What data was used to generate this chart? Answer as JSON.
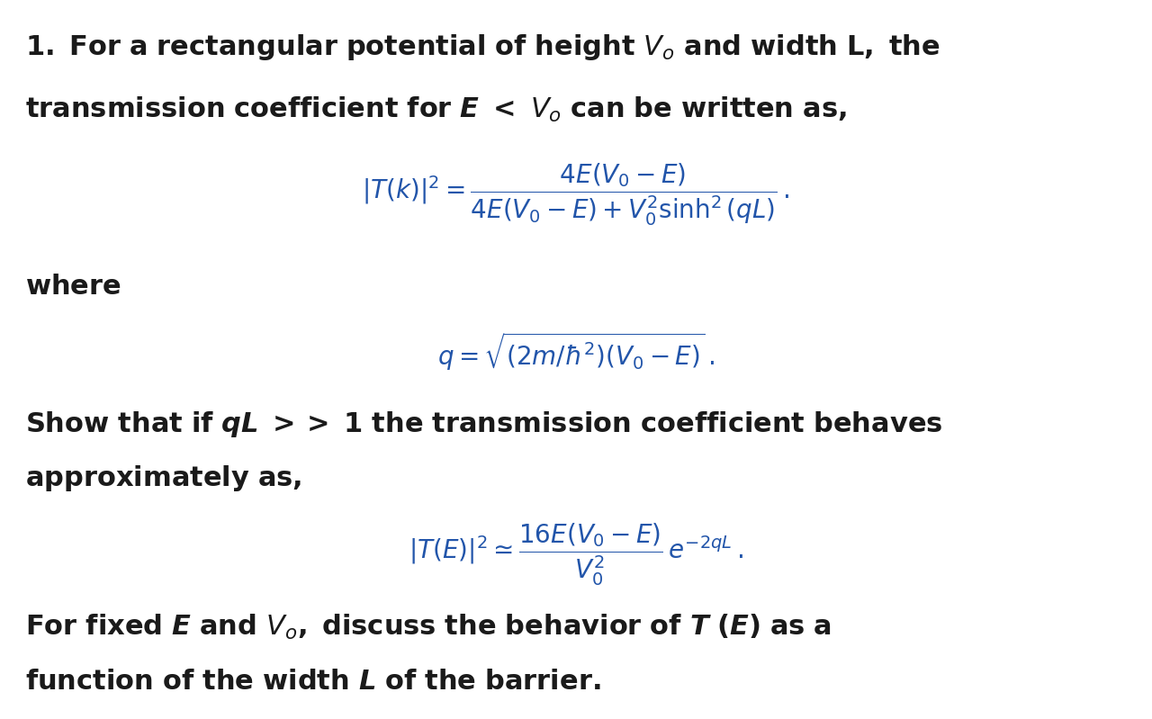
{
  "background_color": "#ffffff",
  "text_color_black": "#1a1a1a",
  "text_color_blue": "#2255aa",
  "fig_width": 12.8,
  "fig_height": 7.99,
  "dpi": 100,
  "heading1": "1. For a rectangular potential of height ",
  "heading1b": " and width L, the",
  "heading2a": "transmission coefficient for ",
  "heading2b": " < ",
  "heading2c": " can be written as,",
  "eq1": "|T(k)|^{2} = \\dfrac{4E(V_0 - E)}{4E(V_0 - E) + V_0^{2}\\sinh^{2}(qL)}\\,.",
  "where": "where",
  "eq2": "q = \\sqrt{(2m/\\hbar^{2})(V_0 - E)}\\,.",
  "show1": "Show that if ",
  "show1b": " >> 1 the transmission coefficient behaves",
  "show2": "approximately as,",
  "eq3": "|T(E)|^{2} \\simeq \\dfrac{16E(V_0 - E)}{V_0^{2}}\\,e^{-2qL}\\,.",
  "final1a": "For fixed ",
  "final1b": " and ",
  "final1c": ", discuss the behavior of ",
  "final1d": " (",
  "final1e": ") as a",
  "final2": "function of the width ",
  "final2b": " of the barrier.",
  "prose_fontsize": 22,
  "eq_fontsize": 20
}
